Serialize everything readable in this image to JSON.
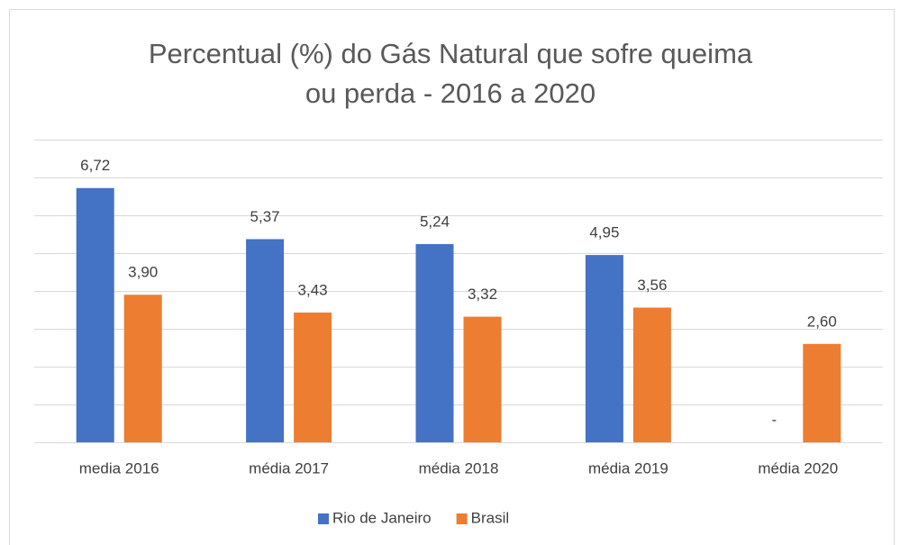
{
  "chart_data": {
    "type": "bar",
    "title": "Percentual (%) do Gás Natural que sofre queima ou perda - 2016 a 2020",
    "categories": [
      "media 2016",
      "média 2017",
      "média 2018",
      "média 2019",
      "média 2020"
    ],
    "series": [
      {
        "name": "Rio de Janeiro",
        "color": "#4472c4",
        "values": [
          6.72,
          5.37,
          5.24,
          4.95,
          null
        ],
        "value_labels": [
          "6,72",
          "5,37",
          "5,24",
          "4,95",
          "-"
        ]
      },
      {
        "name": "Brasil",
        "color": "#ed7d31",
        "values": [
          3.9,
          3.43,
          3.32,
          3.56,
          2.6
        ],
        "value_labels": [
          "3,90",
          "3,43",
          "3,32",
          "3,56",
          "2,60"
        ]
      }
    ],
    "ylim": [
      0,
      8
    ],
    "yticks": [
      0,
      1,
      2,
      3,
      4,
      5,
      6,
      7,
      8
    ],
    "grid": true,
    "legend": "bottom"
  }
}
